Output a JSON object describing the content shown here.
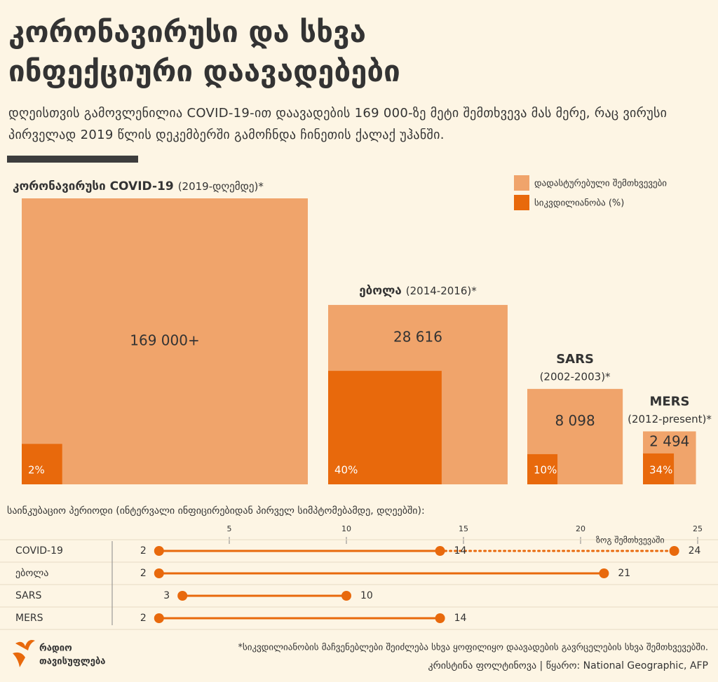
{
  "header": {
    "title": "კორონავირუსი და სხვა ინფექციური დაავადებები",
    "subtitle": "დღეისთვის გამოვლენილია COVID-19-ით დაავადების 169 000-ზე მეტი შემთხვევა მას მერე, რაც ვირუსი პირველად 2019 წლის დეკემბერში გამოჩნდა ჩინეთის ქალაქ უჰანში."
  },
  "chart_data": [
    {
      "type": "nested-square",
      "categories": [
        "კორონავირუსი COVID-19",
        "ებოლა",
        "SARS",
        "MERS"
      ],
      "periods": [
        "(2019-დღემდე)*",
        "(2014-2016)*",
        "(2002-2003)*",
        "(2012-present)*"
      ],
      "series": [
        {
          "name": "დადასტურებული შემთხვევები",
          "color": "#f0a46b",
          "values": [
            169000,
            28616,
            8098,
            2494
          ],
          "value_labels": [
            "169 000+",
            "28 616",
            "8 098",
            "2 494"
          ]
        },
        {
          "name": "სიკვდილიანობა (%)",
          "color": "#e8690c",
          "values": [
            2,
            40,
            10,
            34
          ],
          "value_labels": [
            "2%",
            "40%",
            "10%",
            "34%"
          ]
        }
      ],
      "legend": "top-right"
    },
    {
      "type": "range",
      "title": "საინკუბაციო პერიოდი (ინტერვალი ინფიცირებიდან პირველ სიმპტომებამდე, დღეებში):",
      "categories": [
        "COVID-19",
        "ებოლა",
        "SARS",
        "MERS"
      ],
      "start": [
        2,
        2,
        3,
        2
      ],
      "end": [
        14,
        21,
        10,
        14
      ],
      "extreme": [
        24,
        null,
        null,
        null
      ],
      "extreme_label": "ზოგ შემთხვევაში",
      "color": "#e8690c",
      "xlim": [
        0,
        25
      ],
      "xticks": [
        5,
        10,
        15,
        20,
        25
      ]
    }
  ],
  "footer": {
    "logo": [
      "რადიო",
      "თავისუფლება"
    ],
    "note": "*სიკვდილიანობის მაჩვენებლები შეიძლება სხვა ყოფილიყო დაავადების გავრცელების სხვა შემთხვევებში.",
    "credit": "კრისტინა ფოლტინოვა | წყარო: National Geographic, AFP"
  }
}
